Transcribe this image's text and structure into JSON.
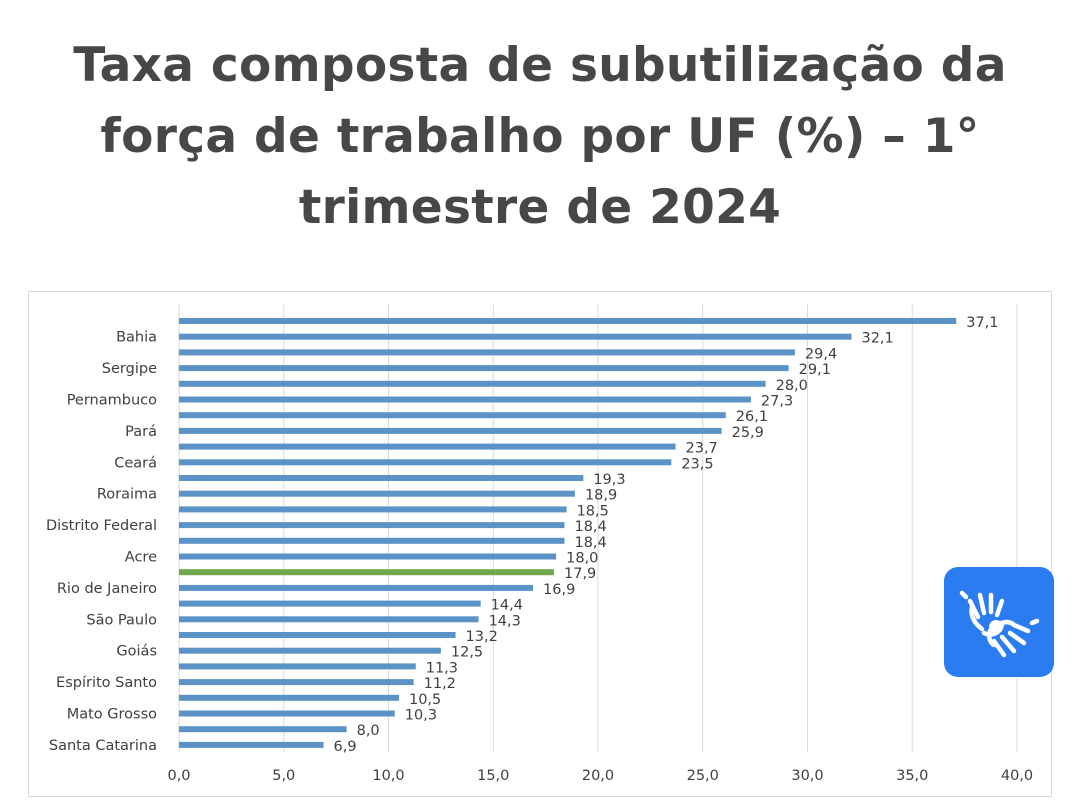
{
  "title": "Taxa composta de subutilização da força de trabalho por UF (%) – 1° trimestre de 2024",
  "accessibility_badge": {
    "icon": "libras-hands-icon",
    "color": "#2a7cf0"
  },
  "chart_data": {
    "type": "bar",
    "orientation": "horizontal",
    "categories": [
      "",
      "Bahia",
      "",
      "Sergipe",
      "",
      "Pernambuco",
      "",
      "Pará",
      "",
      "Ceará",
      "",
      "Roraima",
      "",
      "Distrito Federal",
      "",
      "Acre",
      "",
      "Rio de Janeiro",
      "",
      "São Paulo",
      "",
      "Goiás",
      "",
      "Espírito Santo",
      "",
      "Mato Grosso",
      "",
      "Santa Catarina"
    ],
    "values": [
      37.1,
      32.1,
      29.4,
      29.1,
      28.0,
      27.3,
      26.1,
      25.9,
      23.7,
      23.5,
      19.3,
      18.9,
      18.5,
      18.4,
      18.4,
      18.0,
      17.9,
      16.9,
      14.4,
      14.3,
      13.2,
      12.5,
      11.3,
      11.2,
      10.5,
      10.3,
      8.0,
      6.9
    ],
    "value_labels": [
      "37,1",
      "32,1",
      "29,4",
      "29,1",
      "28,0",
      "27,3",
      "26,1",
      "25,9",
      "23,7",
      "23,5",
      "19,3",
      "18,9",
      "18,5",
      "18,4",
      "18,4",
      "18,0",
      "17,9",
      "16,9",
      "14,4",
      "14,3",
      "13,2",
      "12,5",
      "11,3",
      "11,2",
      "10,5",
      "10,3",
      "8,0",
      "6,9"
    ],
    "highlight_index": 16,
    "bar_color": "#5b93c7",
    "highlight_color": "#70a84b",
    "xlim": [
      0,
      40
    ],
    "xticks": [
      0,
      5,
      10,
      15,
      20,
      25,
      30,
      35,
      40
    ],
    "xtick_labels": [
      "0,0",
      "5,0",
      "10,0",
      "15,0",
      "20,0",
      "25,0",
      "30,0",
      "35,0",
      "40,0"
    ],
    "grid": true
  }
}
